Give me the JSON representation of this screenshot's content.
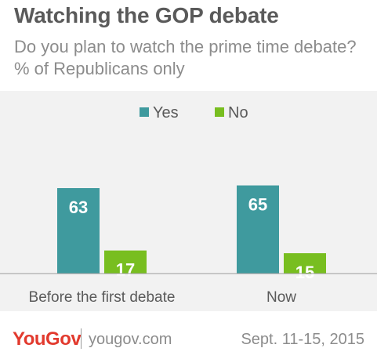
{
  "title": "Watching the GOP debate",
  "subtitle": "Do you plan to watch the prime time debate? % of Republicans only",
  "footer": {
    "brand": "YouGov",
    "site": "yougov.com",
    "date": "Sept. 11-15, 2015"
  },
  "colors": {
    "yes": "#3f9a9e",
    "no": "#78be20",
    "axis": "#9a9a9a",
    "background": "#f2f2f2",
    "text": "#5a5a5a"
  },
  "chart_data": {
    "type": "bar",
    "categories": [
      "Before the first debate",
      "Now"
    ],
    "series": [
      {
        "name": "Yes",
        "values": [
          63,
          65
        ]
      },
      {
        "name": "No",
        "values": [
          17,
          15
        ]
      }
    ],
    "ylim": [
      0,
      100
    ],
    "legend": "top-right",
    "grid": false
  }
}
